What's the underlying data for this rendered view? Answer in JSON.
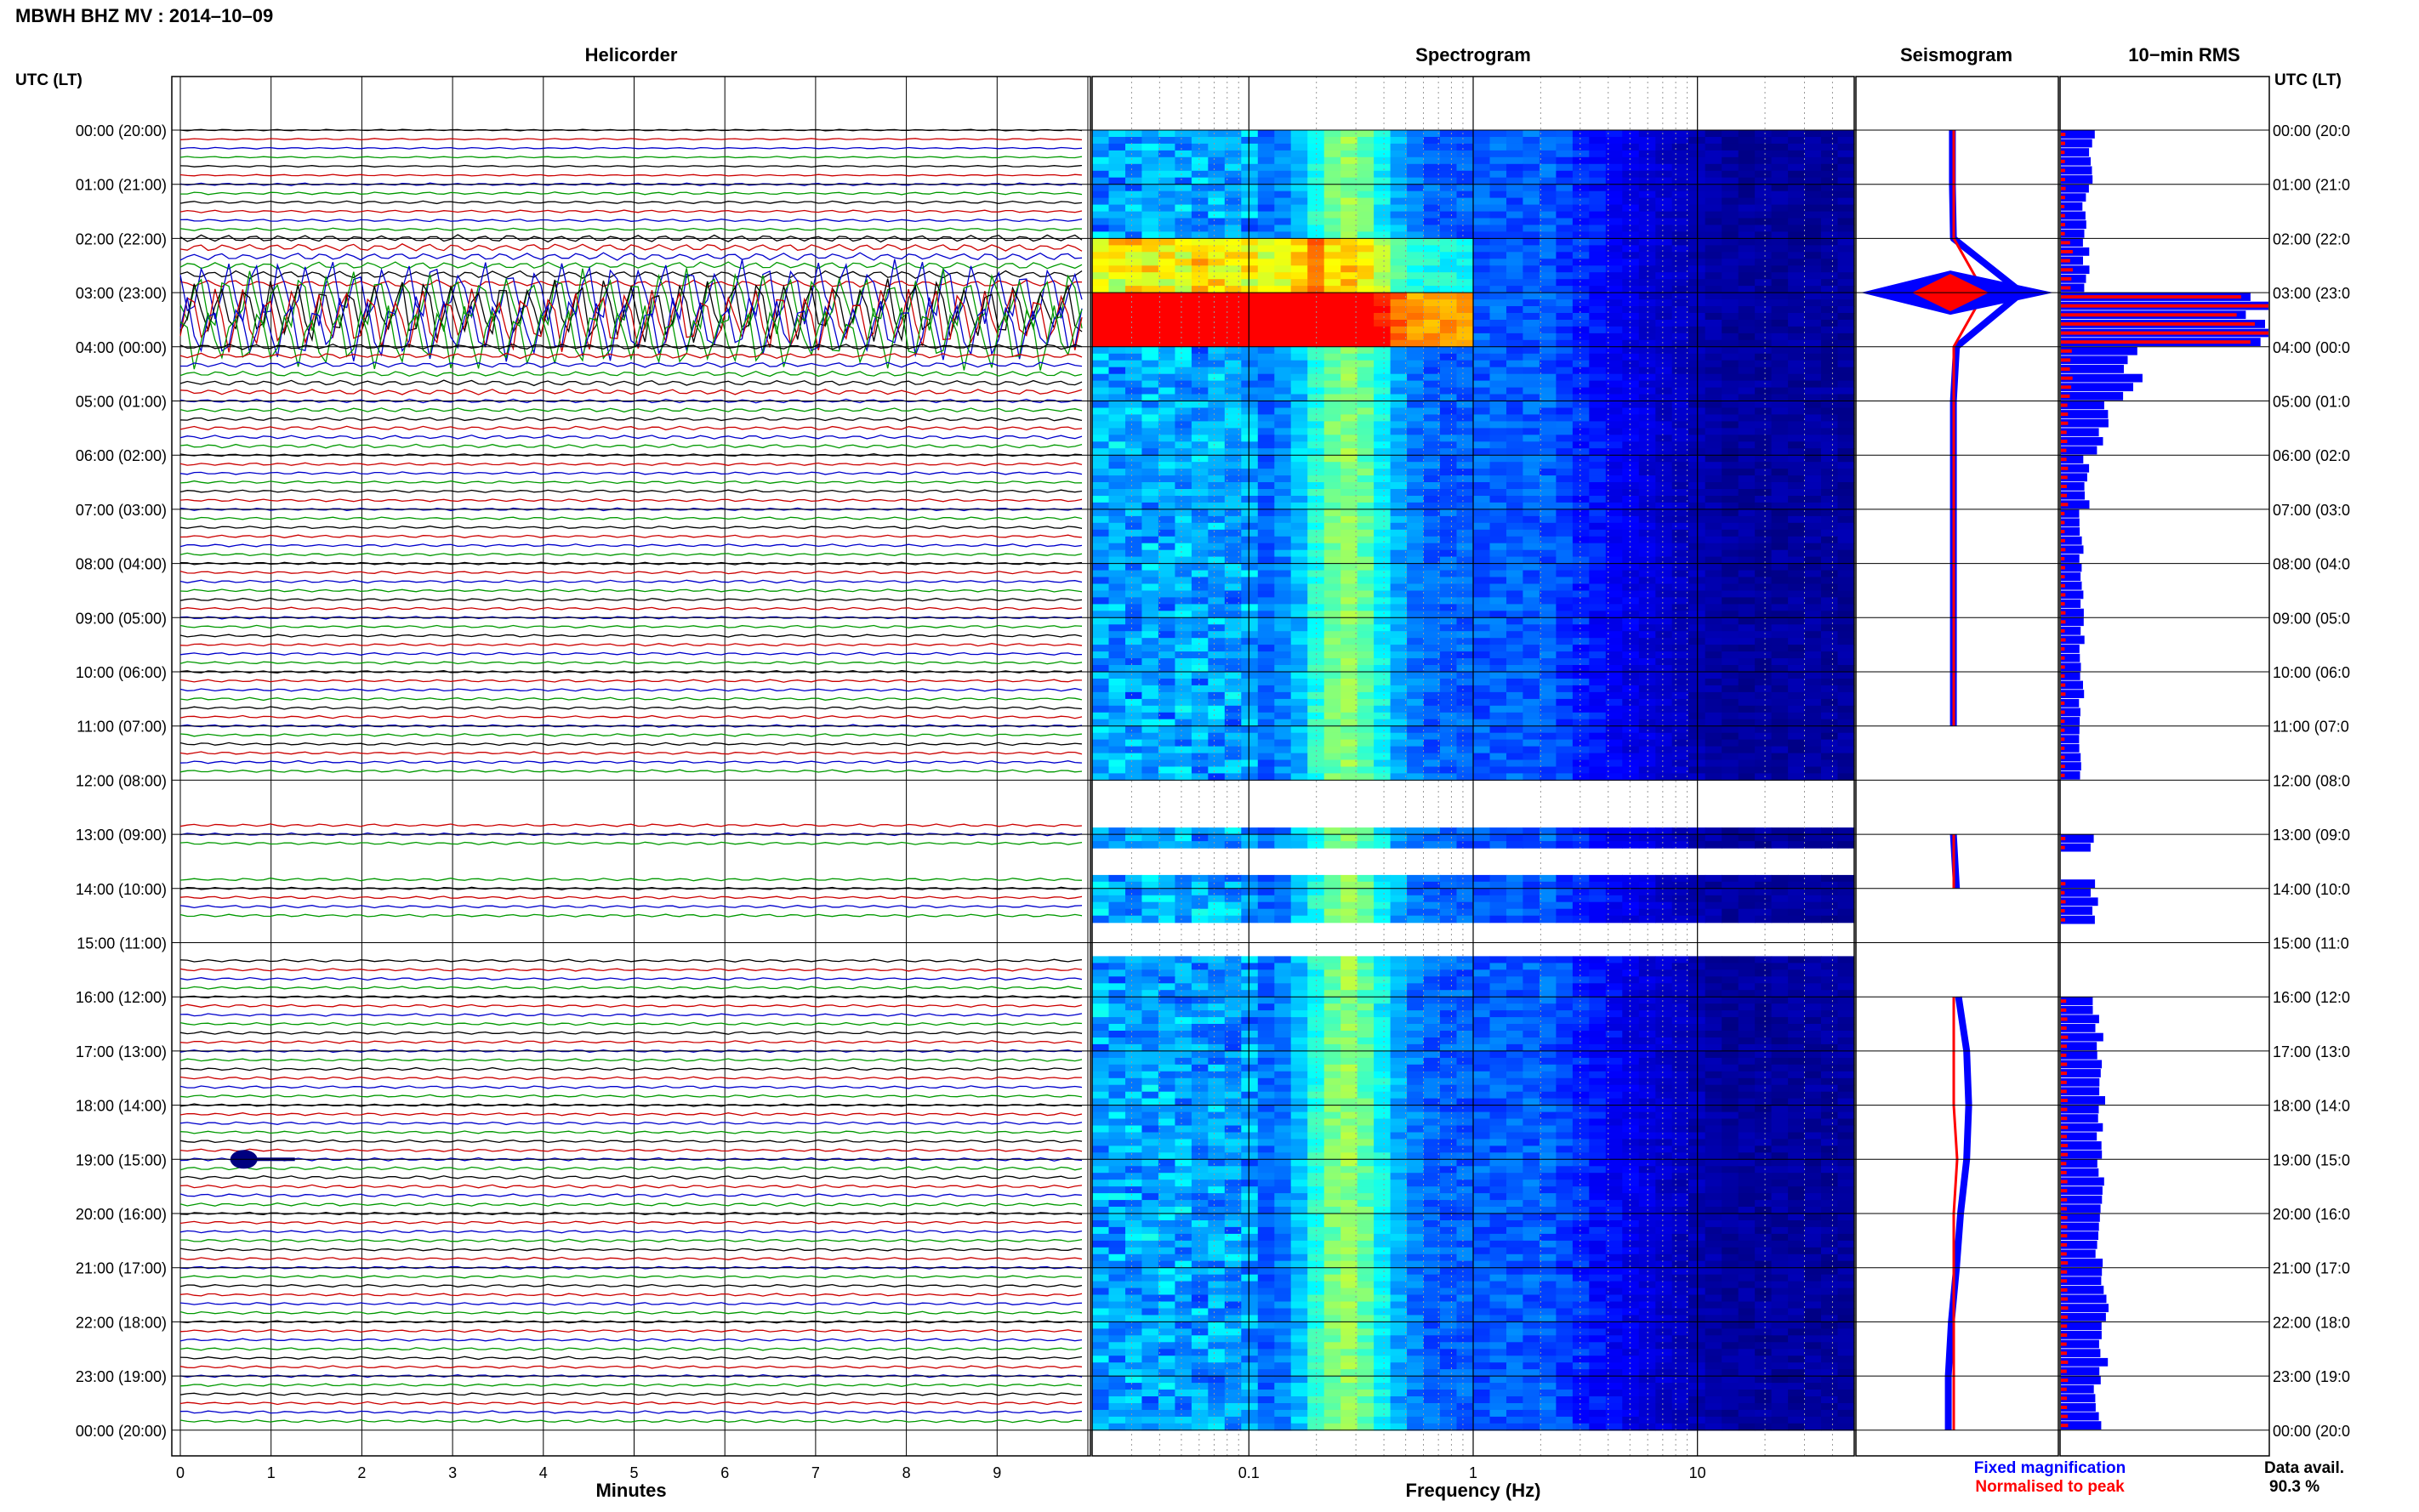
{
  "title": "MBWH BHZ MV : 2014–10–09",
  "panels": {
    "helicorder": "Helicorder",
    "spectrogram": "Spectrogram",
    "seismogram": "Seismogram",
    "rms": "10−min RMS"
  },
  "axis_left_title": "UTC (LT)",
  "axis_right_title": "UTC (LT)",
  "time_labels": [
    "00:00 (20:00)",
    "01:00 (21:00)",
    "02:00 (22:00)",
    "03:00 (23:00)",
    "04:00 (00:00)",
    "05:00 (01:00)",
    "06:00 (02:00)",
    "07:00 (03:00)",
    "08:00 (04:00)",
    "09:00 (05:00)",
    "10:00 (06:00)",
    "11:00 (07:00)",
    "12:00 (08:00)",
    "13:00 (09:00)",
    "14:00 (10:00)",
    "15:00 (11:00)",
    "16:00 (12:00)",
    "17:00 (13:00)",
    "18:00 (14:00)",
    "19:00 (15:00)",
    "20:00 (16:00)",
    "21:00 (17:00)",
    "22:00 (18:00)",
    "23:00 (19:00)",
    "00:00 (20:00)"
  ],
  "right_time_labels": [
    "00:00 (20:0",
    "01:00 (21:0",
    "02:00 (22:0",
    "03:00 (23:0",
    "04:00 (00:0",
    "05:00 (01:0",
    "06:00 (02:0",
    "07:00 (03:0",
    "08:00 (04:0",
    "09:00 (05:0",
    "10:00 (06:0",
    "11:00 (07:0",
    "12:00 (08:0",
    "13:00 (09:0",
    "14:00 (10:0",
    "15:00 (11:0",
    "16:00 (12:0",
    "17:00 (13:0",
    "18:00 (14:0",
    "19:00 (15:0",
    "20:00 (16:0",
    "21:00 (17:0",
    "22:00 (18:0",
    "23:00 (19:0",
    "00:00 (20:0"
  ],
  "helicorder_x_ticks": [
    "0",
    "1",
    "2",
    "3",
    "4",
    "5",
    "6",
    "7",
    "8",
    "9"
  ],
  "helicorder_xlabel": "Minutes",
  "spectrogram_x_ticks": [
    "0.1",
    "1",
    "10"
  ],
  "spectrogram_xlabel": "Frequency (Hz)",
  "legend": {
    "fixed": "Fixed magnification",
    "normalised": "Normalised to peak",
    "fixed_color": "#0000ff",
    "normalised_color": "#ff0000"
  },
  "data_availability": {
    "label": "Data avail.",
    "value": "90.3 %"
  },
  "chart_data": {
    "type": "heatmap",
    "date": "2014-10-09",
    "station": "MBWH BHZ MV",
    "helicorder": {
      "x_unit": "minutes",
      "xlim": [
        0,
        10
      ],
      "trace_colors": [
        "#000000",
        "#cc0000",
        "#0000cc",
        "#009900"
      ],
      "traces_per_hour": 6,
      "amplitude_per_hour": [
        0.3,
        0.5,
        1.4,
        4.0,
        1.0,
        0.7,
        0.5,
        0.5,
        0.5,
        0.5,
        0.5,
        0.5,
        0.5,
        0.5,
        0.5,
        0.5,
        0.5,
        0.5,
        0.5,
        0.6,
        0.5,
        0.5,
        0.5,
        0.5
      ],
      "events": [
        {
          "time": "02:10–03:50 UTC",
          "description": "large amplitude signal"
        },
        {
          "time": "19:00 UTC",
          "minute": 0.7,
          "description": "short high-amplitude burst"
        }
      ]
    },
    "spectrogram": {
      "freq_scale": "log",
      "freq_range_hz": [
        0.02,
        50
      ],
      "colormap": [
        "#00007f",
        "#0000ff",
        "#00ffff",
        "#ffff00",
        "#ff0000"
      ],
      "peak_frequency_hz": 0.25,
      "strong_energy": "03:00 UTC, 0.02–0.2 Hz"
    },
    "gaps_utc": [
      [
        "12:00",
        "12:50"
      ],
      [
        "13:15",
        "13:45"
      ],
      [
        "14:35",
        "15:15"
      ]
    ],
    "seismogram": {
      "fixed_magnification": [
        0.2,
        0.2,
        0.3,
        7.0,
        0.6,
        0.3,
        0.3,
        0.3,
        0.3,
        0.3,
        0.3,
        0.3,
        null,
        0.3,
        0.6,
        null,
        0.8,
        1.6,
        1.8,
        1.6,
        1.0,
        0.6,
        0.1,
        -0.2,
        -0.2
      ],
      "normalised_to_peak": [
        0.1,
        0.1,
        0.1,
        1.0,
        0.1,
        0.1,
        0.1,
        0.1,
        0.1,
        0.1,
        0.1,
        0.1,
        null,
        0.1,
        0.1,
        null,
        0.1,
        0.1,
        0.1,
        0.2,
        0.1,
        0.1,
        0.1,
        0.1,
        0.1
      ]
    },
    "rms_10min": {
      "x_unit": "relative",
      "hourly_fixed": [
        0.15,
        0.12,
        0.12,
        1.0,
        0.35,
        0.2,
        0.12,
        0.1,
        0.1,
        0.1,
        0.1,
        0.1,
        null,
        0.15,
        0.16,
        null,
        0.18,
        0.2,
        0.18,
        0.2,
        0.18,
        0.2,
        0.2,
        0.17
      ],
      "hourly_normalised": [
        0.02,
        0.02,
        0.05,
        0.95,
        0.05,
        0.03,
        0.03,
        0.02,
        0.02,
        0.02,
        0.02,
        0.02,
        null,
        0.02,
        0.02,
        null,
        0.03,
        0.03,
        0.03,
        0.03,
        0.03,
        0.03,
        0.03,
        0.03
      ]
    }
  }
}
